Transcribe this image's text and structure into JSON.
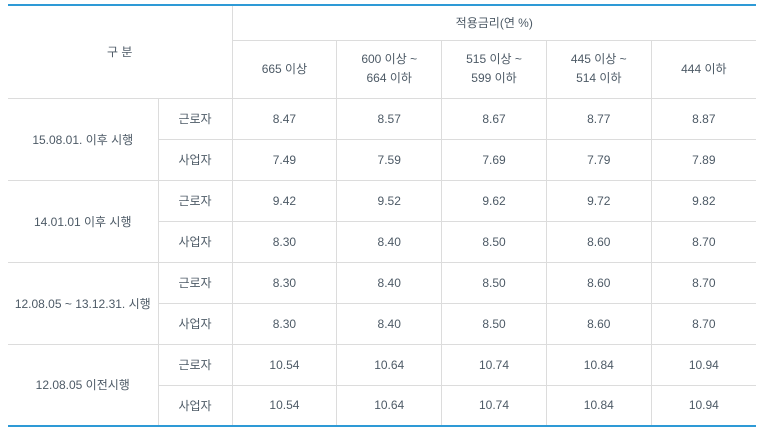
{
  "colors": {
    "accent": "#2e9ad6",
    "border": "#dcdcdc",
    "text": "#4d5a66"
  },
  "table": {
    "category_header": "구 분",
    "rate_header": "적용금리(연 %)",
    "columns": [
      "665 이상",
      "600 이상 ~\n664 이하",
      "515 이상 ~\n599 이하",
      "445 이상 ~\n514 이하",
      "444 이하"
    ],
    "groups": [
      {
        "period": "15.08.01. 이후 시행",
        "rows": [
          {
            "label": "근로자",
            "values": [
              "8.47",
              "8.57",
              "8.67",
              "8.77",
              "8.87"
            ]
          },
          {
            "label": "사업자",
            "values": [
              "7.49",
              "7.59",
              "7.69",
              "7.79",
              "7.89"
            ]
          }
        ]
      },
      {
        "period": "14.01.01 이후 시행",
        "rows": [
          {
            "label": "근로자",
            "values": [
              "9.42",
              "9.52",
              "9.62",
              "9.72",
              "9.82"
            ]
          },
          {
            "label": "사업자",
            "values": [
              "8.30",
              "8.40",
              "8.50",
              "8.60",
              "8.70"
            ]
          }
        ]
      },
      {
        "period": "12.08.05 ~ 13.12.31. 시행",
        "rows": [
          {
            "label": "근로자",
            "values": [
              "8.30",
              "8.40",
              "8.50",
              "8.60",
              "8.70"
            ]
          },
          {
            "label": "사업자",
            "values": [
              "8.30",
              "8.40",
              "8.50",
              "8.60",
              "8.70"
            ]
          }
        ]
      },
      {
        "period": "12.08.05 이전시행",
        "rows": [
          {
            "label": "근로자",
            "values": [
              "10.54",
              "10.64",
              "10.74",
              "10.84",
              "10.94"
            ]
          },
          {
            "label": "사업자",
            "values": [
              "10.54",
              "10.64",
              "10.74",
              "10.84",
              "10.94"
            ]
          }
        ]
      }
    ]
  }
}
